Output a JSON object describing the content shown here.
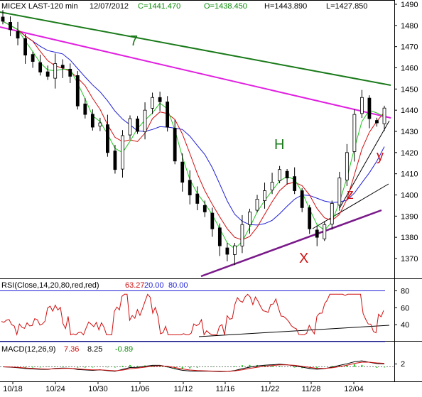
{
  "header": {
    "symbol": "MICEX LAST-120 min",
    "date": "12/07/2012",
    "close": "C=1441.470",
    "open": "O=1438.450",
    "high": "H=1443.890",
    "low": "L=1427.850"
  },
  "rsi_header": {
    "label": "RSI(Close,14,20,80,red,red)",
    "value": "63.27",
    "lower": "20.00",
    "upper": "80.00"
  },
  "macd_header": {
    "label": "MACD(12,26,9)",
    "macd": "7.36",
    "signal": "8.25",
    "hist": "-0.89"
  },
  "annotations": {
    "wave7": "7",
    "h": "H",
    "x": "X",
    "y": "y",
    "z": "z"
  },
  "colors": {
    "ma_green": "#1ec81e",
    "ma_red": "#d01010",
    "ma_blue": "#1e1ed8",
    "trend_magenta": "#e020e0",
    "trend_green": "#1a7a1a",
    "trend_purple": "#7a1a8a",
    "rsi": "#d01010",
    "macd": "#000000",
    "macd_signal": "#d01010",
    "macd_hist": "#1ec81e"
  },
  "chart_data": {
    "type": "candlestick",
    "xlabels": [
      "10/18",
      "10/24",
      "10/30",
      "11/06",
      "11/12",
      "11/16",
      "11/22",
      "11/28",
      "12/04"
    ],
    "ylim": [
      1360,
      1492
    ],
    "yticks": [
      1370,
      1380,
      1390,
      1400,
      1410,
      1420,
      1430,
      1440,
      1450,
      1460,
      1470,
      1480,
      1490
    ],
    "close_approx": [
      1482,
      1478,
      1474,
      1466,
      1463,
      1458,
      1456,
      1462,
      1460,
      1456,
      1442,
      1438,
      1432,
      1434,
      1420,
      1412,
      1428,
      1436,
      1430,
      1440,
      1446,
      1444,
      1432,
      1416,
      1406,
      1400,
      1396,
      1392,
      1384,
      1376,
      1372,
      1376,
      1386,
      1392,
      1398,
      1402,
      1406,
      1412,
      1408,
      1402,
      1394,
      1384,
      1380,
      1386,
      1396,
      1408,
      1420,
      1438,
      1446,
      1436,
      1434,
      1441
    ],
    "rsi": {
      "ylim": [
        20,
        90
      ],
      "yticks": [
        40,
        60,
        80
      ],
      "levels": [
        20,
        80
      ]
    },
    "macd": {
      "yticks": [
        2
      ]
    }
  }
}
